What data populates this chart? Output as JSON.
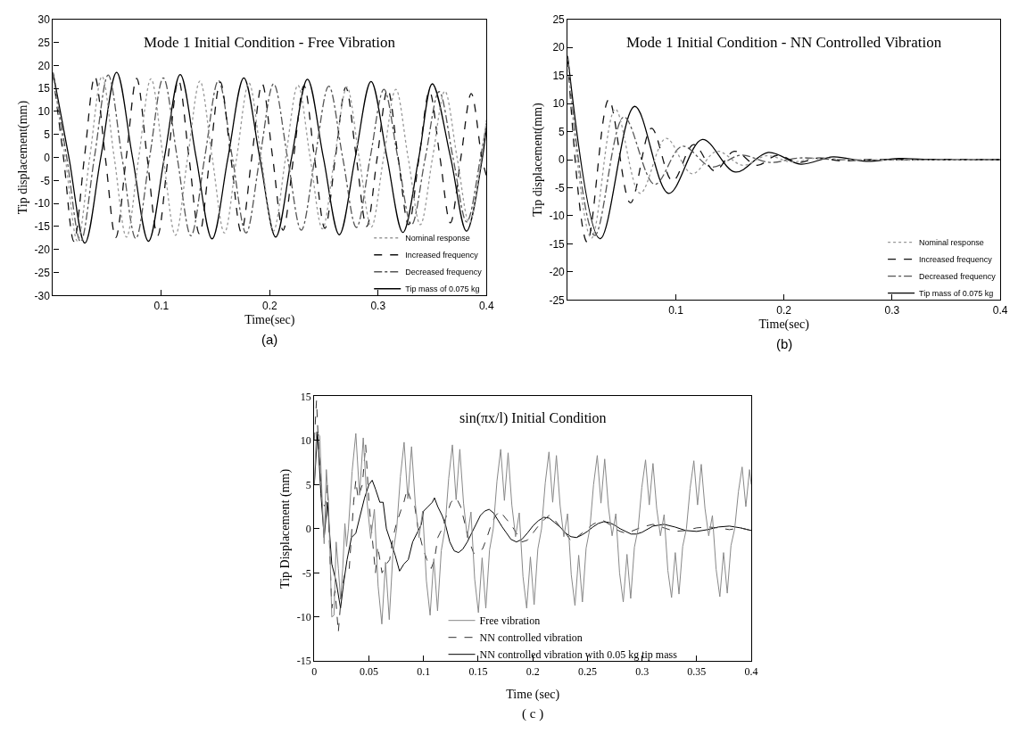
{
  "chart_data": [
    {
      "type": "line",
      "title": "Mode 1 Initial Condition - Free Vibration",
      "xlabel": "Time(sec)",
      "ylabel": "Tip displacement(mm)",
      "xlim": [
        0,
        0.4
      ],
      "xticks": [
        0.1,
        0.2,
        0.3,
        0.4
      ],
      "ylim": [
        -30,
        30
      ],
      "yticks": [
        -30,
        -25,
        -20,
        -15,
        -10,
        -5,
        0,
        5,
        10,
        15,
        20,
        25,
        30
      ],
      "legend": "bottom right",
      "annotations": [
        "(a)"
      ],
      "series": [
        {
          "name": "Nominal response",
          "color": "#999999",
          "line_style": "dotted",
          "x": [
            0,
            0.0113,
            0.0226,
            0.0339,
            0.0452,
            0.0565,
            0.0678,
            0.0791,
            0.0904,
            0.1017,
            0.113,
            0.1243,
            0.1356,
            0.1469,
            0.1582,
            0.1695,
            0.1808,
            0.1921,
            0.2034,
            0.2147,
            0.226,
            0.2373,
            0.2486,
            0.2599,
            0.2712,
            0.2825,
            0.2938,
            0.3051,
            0.3164,
            0.3277,
            0.339,
            0.3503,
            0.3616,
            0.3729,
            0.3842,
            0.3955,
            0.4
          ],
          "values": [
            18,
            0,
            -18.2,
            0,
            17.6,
            0,
            -17.3,
            0,
            17.1,
            0,
            -16.9,
            0,
            16.6,
            0,
            -16.4,
            0,
            16.2,
            0,
            -16,
            0,
            15.7,
            0,
            -15.5,
            0,
            15.3,
            0,
            -15.1,
            0,
            14.8,
            0,
            -14.6,
            0,
            14.4,
            0,
            -14.2,
            0,
            8.3
          ]
        },
        {
          "name": "Increased frequency",
          "color": "#111111",
          "line_style": "dashed",
          "x": [
            0,
            0.0097,
            0.0193,
            0.029,
            0.0386,
            0.0483,
            0.0579,
            0.0676,
            0.0772,
            0.0869,
            0.0965,
            0.1062,
            0.1158,
            0.1255,
            0.1351,
            0.1448,
            0.1544,
            0.1641,
            0.1737,
            0.1834,
            0.193,
            0.2027,
            0.2123,
            0.222,
            0.2316,
            0.2413,
            0.2509,
            0.2606,
            0.2702,
            0.2799,
            0.2895,
            0.2992,
            0.3088,
            0.3185,
            0.3281,
            0.3378,
            0.3474,
            0.3571,
            0.3667,
            0.3764,
            0.386,
            0.3957,
            0.4
          ],
          "values": [
            18,
            0,
            -18.2,
            0,
            17.6,
            0,
            -17.4,
            0,
            17.2,
            0,
            -17,
            0,
            16.8,
            0,
            -16.6,
            0,
            16.4,
            0,
            -16.2,
            0,
            16,
            0,
            -15.8,
            0,
            15.6,
            0,
            -15.4,
            0,
            15.2,
            0,
            -15,
            0,
            14.8,
            0,
            -14.6,
            0,
            14.4,
            0,
            -14.2,
            0,
            13.9,
            0,
            -4
          ]
        },
        {
          "name": "Decreased frequency",
          "color": "#555555",
          "line_style": "dashdot",
          "x": [
            0,
            0.0127,
            0.0255,
            0.0382,
            0.0509,
            0.0637,
            0.0764,
            0.0891,
            0.1018,
            0.1146,
            0.1273,
            0.14,
            0.1527,
            0.1655,
            0.1782,
            0.1909,
            0.2036,
            0.2164,
            0.2291,
            0.2418,
            0.2545,
            0.2673,
            0.28,
            0.2927,
            0.3054,
            0.3182,
            0.3309,
            0.3436,
            0.3563,
            0.3691,
            0.3818,
            0.3945,
            0.4
          ],
          "values": [
            18,
            0,
            -18.3,
            0,
            17.9,
            0,
            -17.6,
            0,
            17.3,
            0,
            -17,
            0,
            16.7,
            0,
            -16.4,
            0,
            16,
            0,
            -15.8,
            0,
            15.5,
            0,
            -15.2,
            0,
            14.8,
            0,
            -14.6,
            0,
            14.3,
            0,
            -14,
            0,
            7.5
          ]
        },
        {
          "name": "Tip mass of 0.075 kg",
          "color": "#000000",
          "line_style": "solid",
          "x": [
            0,
            0.0147,
            0.0294,
            0.0441,
            0.0587,
            0.0734,
            0.0881,
            0.1028,
            0.1174,
            0.1321,
            0.1468,
            0.1615,
            0.1761,
            0.1908,
            0.2055,
            0.2202,
            0.2348,
            0.2495,
            0.2642,
            0.2789,
            0.2935,
            0.3082,
            0.3229,
            0.3376,
            0.35,
            0.3669,
            0.3816,
            0.3963,
            0.4
          ],
          "values": [
            18.5,
            0,
            -18.6,
            0,
            18.5,
            0,
            -18.2,
            0,
            18,
            0,
            -17.7,
            0,
            17.3,
            0,
            -17.3,
            0,
            17,
            0,
            -16.8,
            0,
            16.5,
            0,
            -16.3,
            0,
            16,
            0,
            -16,
            0,
            6.5
          ]
        }
      ]
    },
    {
      "type": "line",
      "title": "Mode 1 Initial Condition - NN Controlled Vibration",
      "xlabel": "Time(sec)",
      "ylabel": "Tip displacement(mm)",
      "xlim": [
        0,
        0.4
      ],
      "xticks": [
        0.1,
        0.2,
        0.3,
        0.4
      ],
      "ylim": [
        -25,
        25
      ],
      "yticks": [
        -25,
        -20,
        -15,
        -10,
        -5,
        0,
        5,
        10,
        15,
        20,
        25
      ],
      "legend": "bottom right",
      "annotations": [
        "(b)"
      ],
      "series": [
        {
          "name": "Nominal response",
          "color": "#999999",
          "line_style": "dotted",
          "x": [
            0,
            0.022,
            0.044,
            0.067,
            0.091,
            0.115,
            0.138,
            0.162,
            0.184,
            0.207,
            0.23,
            0.26,
            0.4
          ],
          "values": [
            18,
            -14,
            9,
            -6,
            3.8,
            -2.5,
            1.5,
            -1,
            0.7,
            -0.4,
            0.3,
            0,
            0
          ]
        },
        {
          "name": "Increased frequency",
          "color": "#111111",
          "line_style": "dashed",
          "x": [
            0,
            0.018,
            0.038,
            0.058,
            0.0775,
            0.097,
            0.1165,
            0.136,
            0.154,
            0.175,
            0.194,
            0.213,
            0.232,
            0.252,
            0.28,
            0.4
          ],
          "values": [
            18,
            -14.7,
            10.7,
            -7.7,
            5.6,
            -3.8,
            2.7,
            -2,
            1.5,
            -1,
            0.8,
            -0.5,
            0.3,
            -0.2,
            0,
            0
          ]
        },
        {
          "name": "Decreased frequency",
          "color": "#555555",
          "line_style": "dashdot",
          "x": [
            0,
            0.025,
            0.052,
            0.0805,
            0.106,
            0.133,
            0.16,
            0.187,
            0.214,
            0.25,
            0.4
          ],
          "values": [
            18,
            -13.5,
            7.6,
            -4.4,
            2.4,
            -1.3,
            0.8,
            -0.5,
            0.3,
            0,
            0
          ]
        },
        {
          "name": "Tip mass of 0.075 kg",
          "color": "#000000",
          "line_style": "solid",
          "x": [
            0,
            0.03,
            0.062,
            0.0935,
            0.1245,
            0.155,
            0.1855,
            0.2155,
            0.2455,
            0.276,
            0.306,
            0.34,
            0.4
          ],
          "values": [
            18.5,
            -14.1,
            9.5,
            -6,
            3.6,
            -2.2,
            1.3,
            -0.8,
            0.5,
            -0.3,
            0.2,
            0,
            0
          ]
        }
      ]
    },
    {
      "type": "line",
      "title": "sin(πx/l) Initial Condition",
      "xlabel": "Time (sec)",
      "ylabel": "Tip Displacement (mm)",
      "xlim": [
        0,
        0.4
      ],
      "xticks": [
        0,
        0.05,
        0.1,
        0.15,
        0.2,
        0.25,
        0.3,
        0.35,
        0.4
      ],
      "ylim": [
        -15,
        15
      ],
      "yticks": [
        -15,
        -10,
        -5,
        0,
        5,
        10,
        15
      ],
      "legend": "bottom",
      "annotations": [
        "( c )"
      ],
      "series": [
        {
          "name": "Free vibration",
          "color": "#888888",
          "line_style": "solid",
          "x": [
            0,
            0.002,
            0.005,
            0.007,
            0.009,
            0.011,
            0.013,
            0.016,
            0.018,
            0.02,
            0.022,
            0.024,
            0.026,
            0.028,
            0.0295,
            0.0312,
            0.0346,
            0.038,
            0.0414,
            0.0448,
            0.0482,
            0.0516,
            0.055,
            0.0584,
            0.0618,
            0.0652,
            0.0686,
            0.072,
            0.0754,
            0.0788,
            0.0822,
            0.0856,
            0.089,
            0.0924,
            0.0958,
            0.0992,
            0.1026,
            0.106,
            0.1094,
            0.1128,
            0.1162,
            0.1196,
            0.123,
            0.1264,
            0.1298,
            0.1332,
            0.1366,
            0.14,
            0.1434,
            0.1468,
            0.1502,
            0.1536,
            0.157,
            0.1604,
            0.1638,
            0.1672,
            0.1706,
            0.174,
            0.1774,
            0.1808,
            0.1842,
            0.1876,
            0.191,
            0.1944,
            0.1978,
            0.2012,
            0.2046,
            0.208,
            0.2114,
            0.2148,
            0.2182,
            0.2216,
            0.225,
            0.2284,
            0.2318,
            0.2352,
            0.2386,
            0.242,
            0.2454,
            0.2488,
            0.2522,
            0.2556,
            0.259,
            0.2624,
            0.2658,
            0.2692,
            0.2726,
            0.276,
            0.2794,
            0.2828,
            0.2862,
            0.2896,
            0.293,
            0.2964,
            0.2998,
            0.3032,
            0.3066,
            0.31,
            0.3134,
            0.3168,
            0.3202,
            0.3236,
            0.327,
            0.3304,
            0.3338,
            0.3372,
            0.3406,
            0.344,
            0.3474,
            0.3508,
            0.3542,
            0.3576,
            0.361,
            0.3644,
            0.3678,
            0.3712,
            0.3746,
            0.378,
            0.3814,
            0.3848,
            0.3882,
            0.3916,
            0.395,
            0.3984,
            0.4
          ],
          "values": [
            5,
            11,
            10.5,
            4,
            -1.7,
            6.7,
            3,
            -10,
            -9.8,
            -1.5,
            -4.5,
            -8,
            -4.5,
            0.6,
            -2,
            0,
            6.5,
            10.8,
            3.8,
            10.3,
            3.2,
            -1.1,
            2.2,
            -6.5,
            -10.8,
            -3.8,
            -10.3,
            -2.7,
            0,
            5.9,
            9.8,
            3.4,
            9.3,
            2.9,
            -1,
            2,
            -5.9,
            -9.8,
            -3.4,
            -9.3,
            -2.5,
            0,
            5.7,
            9.5,
            3.3,
            9,
            2.9,
            -1,
            1.9,
            -5.7,
            -9.5,
            -3.3,
            -9,
            -2.4,
            0,
            5.4,
            9,
            3.2,
            8.6,
            2.7,
            -0.9,
            1.8,
            -5.4,
            -9,
            -3.2,
            -8.6,
            -2.3,
            0,
            5.2,
            8.7,
            3,
            8.3,
            2.6,
            -0.9,
            1.7,
            -5.2,
            -8.7,
            -3,
            -8.3,
            -2.2,
            0,
            5,
            8.3,
            2.9,
            7.9,
            2.5,
            -0.8,
            1.7,
            -5,
            -8.3,
            -2.9,
            -7.9,
            -2.1,
            0,
            4.7,
            7.8,
            2.7,
            7.4,
            2.3,
            -0.8,
            1.6,
            -4.7,
            -7.8,
            -2.7,
            -7.4,
            -2,
            0,
            4.6,
            7.7,
            2.7,
            7.3,
            2.3,
            -0.8,
            1.5,
            -4.6,
            -7.7,
            -2.7,
            -7.3,
            -1.9,
            0,
            4.2,
            7,
            2.5,
            6.7,
            5
          ]
        },
        {
          "name": "NN controlled vibration",
          "color": "#333333",
          "line_style": "dashed",
          "x": [
            0,
            0.002,
            0.004,
            0.007,
            0.01,
            0.012,
            0.016,
            0.019,
            0.022,
            0.025,
            0.028,
            0.032,
            0.036,
            0.038,
            0.04,
            0.044,
            0.047,
            0.05,
            0.053,
            0.056,
            0.058,
            0.062,
            0.066,
            0.069,
            0.072,
            0.075,
            0.079,
            0.082,
            0.085,
            0.089,
            0.092,
            0.095,
            0.099,
            0.103,
            0.107,
            0.11,
            0.113,
            0.117,
            0.121,
            0.125,
            0.13,
            0.134,
            0.138,
            0.142,
            0.146,
            0.15,
            0.154,
            0.158,
            0.162,
            0.166,
            0.17,
            0.175,
            0.18,
            0.185,
            0.19,
            0.195,
            0.2,
            0.205,
            0.21,
            0.215,
            0.22,
            0.225,
            0.23,
            0.235,
            0.24,
            0.245,
            0.25,
            0.255,
            0.26,
            0.265,
            0.27,
            0.275,
            0.28,
            0.285,
            0.29,
            0.3,
            0.31,
            0.32,
            0.33,
            0.34,
            0.35,
            0.36,
            0.37,
            0.38,
            0.39,
            0.4
          ],
          "values": [
            10,
            14.5,
            9,
            3,
            2.5,
            5,
            -9,
            -7,
            -11.7,
            -7,
            -5,
            -4.5,
            3,
            5.5,
            3.5,
            5,
            9.5,
            3,
            -1,
            -5,
            -2,
            -5,
            -4,
            -3.5,
            -1,
            0.5,
            2,
            3,
            4.5,
            3,
            2.5,
            0,
            -2,
            -3.5,
            -4.5,
            -3.5,
            -1,
            0,
            1.5,
            3,
            3.5,
            2.5,
            0.5,
            -1.5,
            -2.8,
            -2.5,
            -2.3,
            -1,
            0.5,
            1.5,
            2,
            1.2,
            0.5,
            -0.5,
            -1.5,
            -1.3,
            -0.5,
            0.3,
            1,
            1.5,
            1,
            0.2,
            -0.5,
            -1.4,
            -1,
            -0.5,
            0,
            0.5,
            0.8,
            0.9,
            0.5,
            0,
            -0.3,
            -0.5,
            -0.3,
            0.2,
            0.5,
            0.1,
            -0.3,
            -0.2,
            0.1,
            0.2,
            0.1,
            -0.1,
            0.1,
            -0.2
          ]
        },
        {
          "name": "NN controlled vibration with 0.05 kg tip mass",
          "color": "#000000",
          "line_style": "solid",
          "x": [
            0,
            0.003,
            0.006,
            0.009,
            0.012,
            0.016,
            0.02,
            0.024,
            0.027,
            0.03,
            0.034,
            0.038,
            0.042,
            0.046,
            0.05,
            0.053,
            0.056,
            0.06,
            0.063,
            0.066,
            0.07,
            0.074,
            0.078,
            0.082,
            0.086,
            0.09,
            0.094,
            0.098,
            0.1,
            0.104,
            0.108,
            0.11,
            0.113,
            0.117,
            0.12,
            0.124,
            0.128,
            0.132,
            0.136,
            0.14,
            0.144,
            0.148,
            0.152,
            0.156,
            0.16,
            0.164,
            0.168,
            0.172,
            0.176,
            0.18,
            0.185,
            0.19,
            0.195,
            0.2,
            0.205,
            0.21,
            0.215,
            0.22,
            0.225,
            0.23,
            0.235,
            0.24,
            0.245,
            0.25,
            0.255,
            0.26,
            0.265,
            0.27,
            0.275,
            0.28,
            0.285,
            0.29,
            0.295,
            0.3,
            0.31,
            0.32,
            0.33,
            0.34,
            0.35,
            0.36,
            0.37,
            0.38,
            0.39,
            0.4
          ],
          "values": [
            5,
            11,
            4,
            -1,
            3,
            -4,
            -6,
            -9,
            -6,
            -3.5,
            -1,
            -0.5,
            1.5,
            3.5,
            5,
            5.5,
            4.5,
            3,
            3,
            0,
            -1.5,
            -3,
            -4.8,
            -4,
            -3.5,
            -1.5,
            -0.5,
            0.5,
            2,
            2.5,
            3,
            3.5,
            2.5,
            1.5,
            0.5,
            -1.5,
            -2.5,
            -2.7,
            -2.3,
            -1.5,
            -0.5,
            0.5,
            1.5,
            2,
            2.2,
            1.8,
            1,
            0.2,
            -0.5,
            -1.2,
            -1.5,
            -1.2,
            -0.5,
            0.3,
            0.9,
            1.3,
            1.2,
            0.7,
            0.2,
            -0.5,
            -0.9,
            -1,
            -0.7,
            -0.3,
            0.2,
            0.6,
            0.8,
            0.7,
            0.4,
            0,
            -0.3,
            -0.6,
            -0.6,
            -0.4,
            0.3,
            0.5,
            0.2,
            -0.2,
            -0.3,
            -0.1,
            0.2,
            0.3,
            0.1,
            -0.2
          ]
        }
      ]
    }
  ]
}
